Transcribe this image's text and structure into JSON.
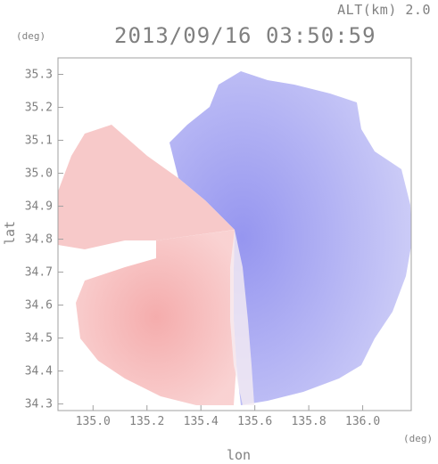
{
  "header": {
    "altitude": "ALT(km) 2.0",
    "timestamp": "2013/09/16 03:50:59"
  },
  "axes": {
    "x_label": "lon",
    "y_label": "lat",
    "x_unit": "(deg)",
    "y_unit": "(deg)",
    "x_range": [
      134.87,
      136.18
    ],
    "y_range": [
      34.28,
      35.35
    ],
    "x_ticks": [
      "135.0",
      "135.2",
      "135.4",
      "135.6",
      "135.8",
      "136.0"
    ],
    "y_ticks": [
      "34.3",
      "34.4",
      "34.5",
      "34.6",
      "34.7",
      "34.8",
      "34.9",
      "35.0",
      "35.1",
      "35.2",
      "35.3"
    ]
  },
  "radar": {
    "center": {
      "lon": 135.52,
      "lat": 34.81
    },
    "colors": {
      "approaching": "#f08a8a",
      "receding": "#8e8ef0",
      "neutral": "#ffffff",
      "frame": "#a0a0a0"
    }
  }
}
